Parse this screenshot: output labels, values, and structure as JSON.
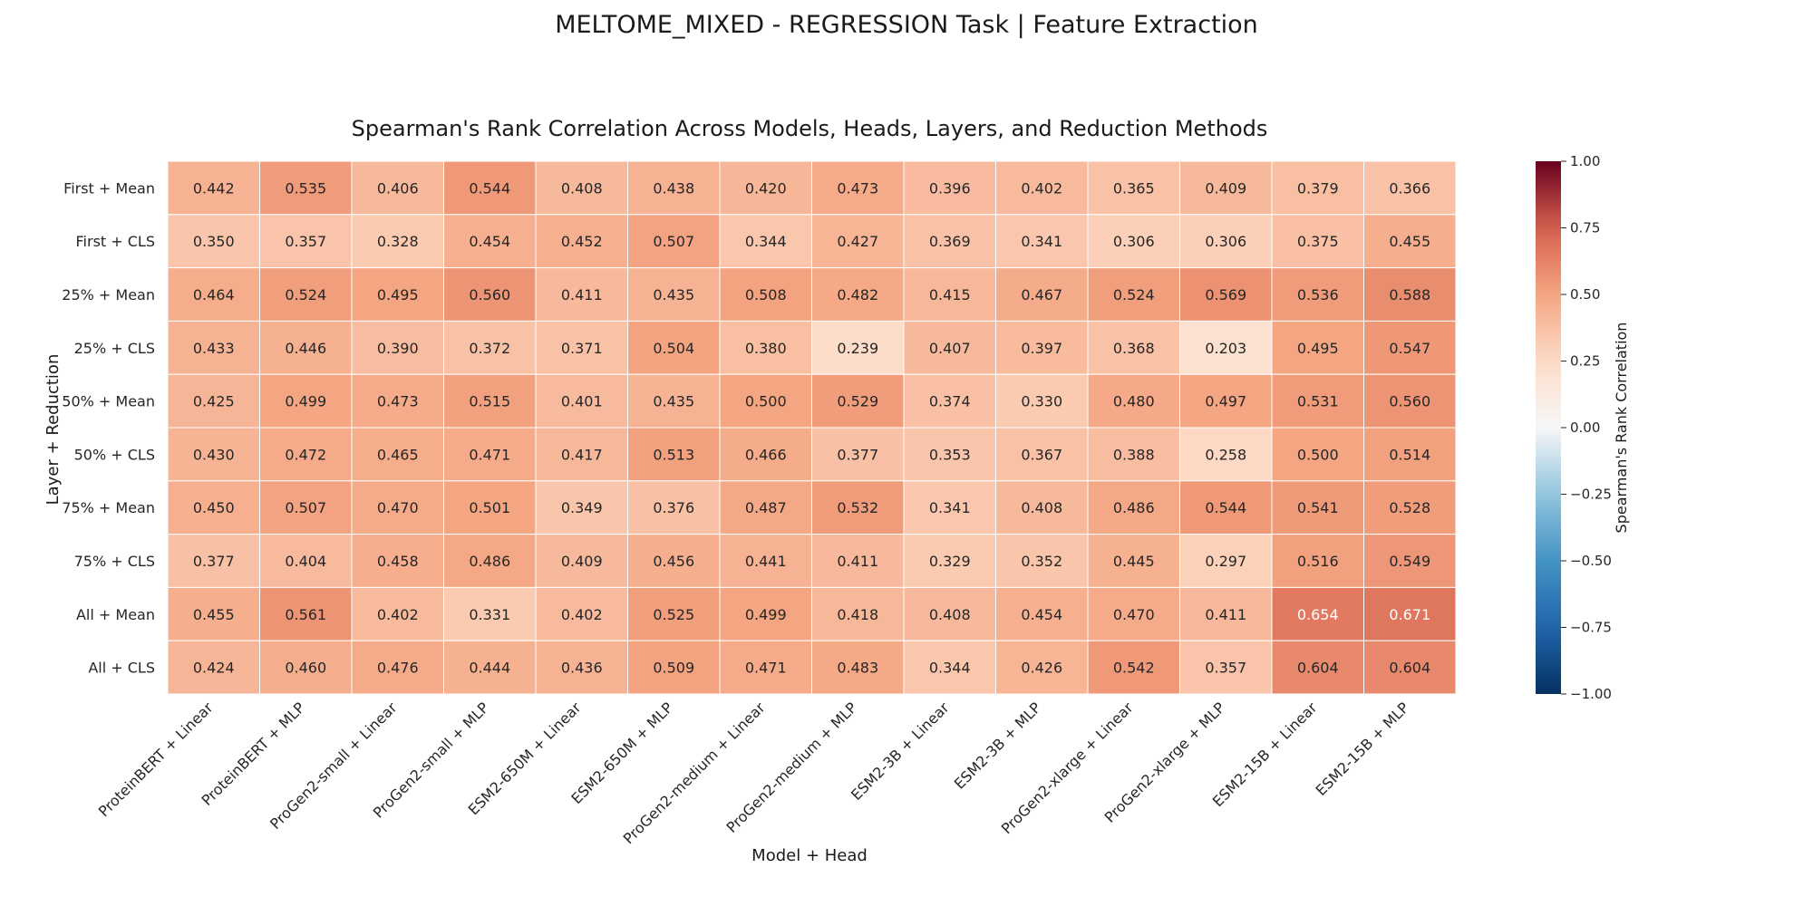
{
  "figure": {
    "suptitle": "MELTOME_MIXED - REGRESSION Task | Feature Extraction"
  },
  "chart_data": {
    "type": "heatmap",
    "title": "Spearman's Rank Correlation Across Models, Heads, Layers, and Reduction Methods",
    "xlabel": "Model + Head",
    "ylabel": "Layer + Reduction",
    "colorbar_label": "Spearman's Rank Correlation",
    "colormap": "RdBu_r",
    "vmin": -1.0,
    "vmax": 1.0,
    "colorbar_ticks": [
      "1.00",
      "0.75",
      "0.50",
      "0.25",
      "0.00",
      "−0.25",
      "−0.50",
      "−0.75",
      "−1.00"
    ],
    "columns": [
      "ProteinBERT + Linear",
      "ProteinBERT + MLP",
      "ProGen2-small + Linear",
      "ProGen2-small + MLP",
      "ESM2-650M + Linear",
      "ESM2-650M + MLP",
      "ProGen2-medium + Linear",
      "ProGen2-medium + MLP",
      "ESM2-3B + Linear",
      "ESM2-3B + MLP",
      "ProGen2-xlarge + Linear",
      "ProGen2-xlarge + MLP",
      "ESM2-15B + Linear",
      "ESM2-15B + MLP"
    ],
    "rows": [
      "First + Mean",
      "First + CLS",
      "25% + Mean",
      "25% + CLS",
      "50% + Mean",
      "50% + CLS",
      "75% + Mean",
      "75% + CLS",
      "All + Mean",
      "All + CLS"
    ],
    "values": [
      [
        0.442,
        0.535,
        0.406,
        0.544,
        0.408,
        0.438,
        0.42,
        0.473,
        0.396,
        0.402,
        0.365,
        0.409,
        0.379,
        0.366
      ],
      [
        0.35,
        0.357,
        0.328,
        0.454,
        0.452,
        0.507,
        0.344,
        0.427,
        0.369,
        0.341,
        0.306,
        0.306,
        0.375,
        0.455
      ],
      [
        0.464,
        0.524,
        0.495,
        0.56,
        0.411,
        0.435,
        0.508,
        0.482,
        0.415,
        0.467,
        0.524,
        0.569,
        0.536,
        0.588
      ],
      [
        0.433,
        0.446,
        0.39,
        0.372,
        0.371,
        0.504,
        0.38,
        0.239,
        0.407,
        0.397,
        0.368,
        0.203,
        0.495,
        0.547
      ],
      [
        0.425,
        0.499,
        0.473,
        0.515,
        0.401,
        0.435,
        0.5,
        0.529,
        0.374,
        0.33,
        0.48,
        0.497,
        0.531,
        0.56
      ],
      [
        0.43,
        0.472,
        0.465,
        0.471,
        0.417,
        0.513,
        0.466,
        0.377,
        0.353,
        0.367,
        0.388,
        0.258,
        0.5,
        0.514
      ],
      [
        0.45,
        0.507,
        0.47,
        0.501,
        0.349,
        0.376,
        0.487,
        0.532,
        0.341,
        0.408,
        0.486,
        0.544,
        0.541,
        0.528
      ],
      [
        0.377,
        0.404,
        0.458,
        0.486,
        0.409,
        0.456,
        0.441,
        0.411,
        0.329,
        0.352,
        0.445,
        0.297,
        0.516,
        0.549
      ],
      [
        0.455,
        0.561,
        0.402,
        0.331,
        0.402,
        0.525,
        0.499,
        0.418,
        0.408,
        0.454,
        0.47,
        0.411,
        0.654,
        0.671
      ],
      [
        0.424,
        0.46,
        0.476,
        0.444,
        0.436,
        0.509,
        0.471,
        0.483,
        0.344,
        0.426,
        0.542,
        0.357,
        0.604,
        0.604
      ]
    ],
    "grid": true,
    "legend": "colorbar-right"
  }
}
